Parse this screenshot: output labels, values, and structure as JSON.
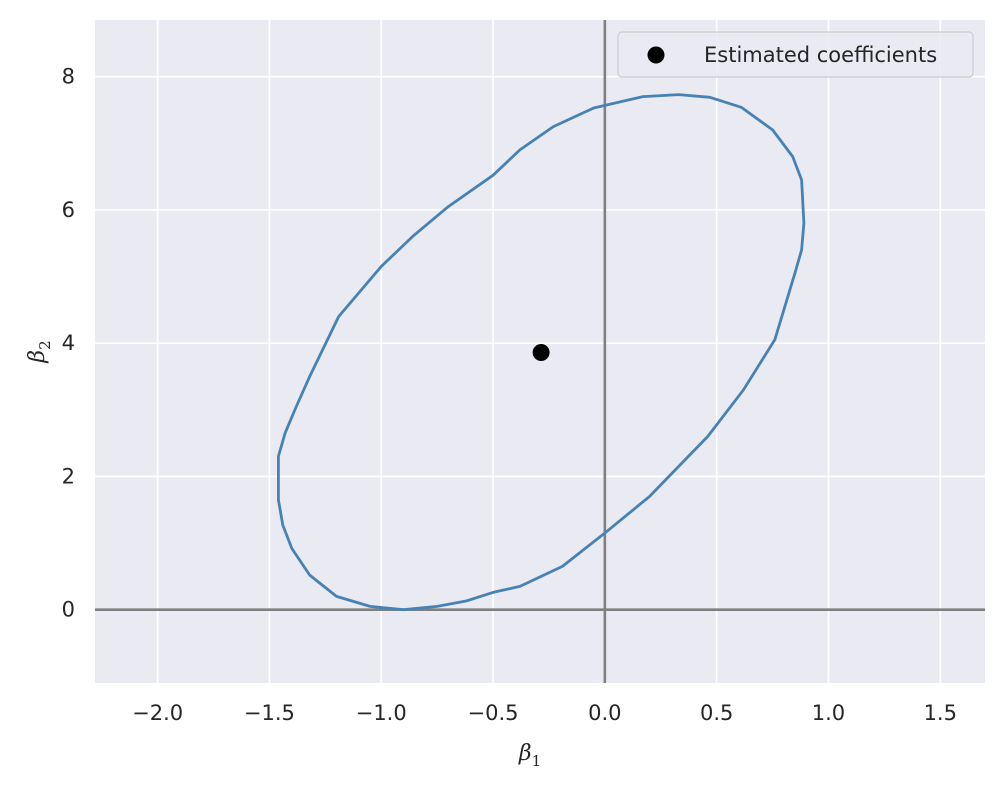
{
  "chart_data": {
    "type": "scatter",
    "title": "",
    "xlabel": "β",
    "xlabel_sub": "1",
    "ylabel": "β",
    "ylabel_sub": "2",
    "xlim": [
      -2.28,
      1.7
    ],
    "ylim": [
      -1.1,
      8.85
    ],
    "x_ticks": [
      -2.0,
      -1.5,
      -1.0,
      -0.5,
      0.0,
      0.5,
      1.0,
      1.5
    ],
    "x_tick_labels": [
      "−2.0",
      "−1.5",
      "−1.0",
      "−0.5",
      "0.0",
      "0.5",
      "1.0",
      "1.5"
    ],
    "y_ticks": [
      0,
      2,
      4,
      6,
      8
    ],
    "y_tick_labels": [
      "0",
      "2",
      "4",
      "6",
      "8"
    ],
    "grid": true,
    "background": "#eaeaf2",
    "reference_lines": {
      "x": 0,
      "y": 0,
      "color": "#808080"
    },
    "points": [
      {
        "x": -0.285,
        "y": 3.86,
        "color": "#000000"
      }
    ],
    "ellipse": {
      "color": "#4682b4",
      "center": [
        -0.285,
        3.86
      ],
      "points": [
        [
          0.33,
          7.73
        ],
        [
          0.47,
          7.69
        ],
        [
          0.61,
          7.54
        ],
        [
          0.75,
          7.2
        ],
        [
          0.84,
          6.8
        ],
        [
          0.88,
          6.45
        ],
        [
          0.89,
          5.8
        ],
        [
          0.88,
          5.4
        ],
        [
          0.85,
          5.05
        ],
        [
          0.76,
          4.05
        ],
        [
          0.62,
          3.3
        ],
        [
          0.46,
          2.6
        ],
        [
          0.2,
          1.7
        ],
        [
          0.0,
          1.15
        ],
        [
          -0.19,
          0.65
        ],
        [
          -0.38,
          0.35
        ],
        [
          -0.5,
          0.26
        ],
        [
          -0.62,
          0.13
        ],
        [
          -0.75,
          0.05
        ],
        [
          -0.9,
          0.0
        ],
        [
          -1.05,
          0.05
        ],
        [
          -1.2,
          0.2
        ],
        [
          -1.32,
          0.52
        ],
        [
          -1.4,
          0.92
        ],
        [
          -1.44,
          1.27
        ],
        [
          -1.46,
          1.65
        ],
        [
          -1.46,
          2.3
        ],
        [
          -1.43,
          2.65
        ],
        [
          -1.38,
          3.05
        ],
        [
          -1.32,
          3.5
        ],
        [
          -1.19,
          4.4
        ],
        [
          -1.0,
          5.15
        ],
        [
          -0.86,
          5.6
        ],
        [
          -0.7,
          6.05
        ],
        [
          -0.5,
          6.52
        ],
        [
          -0.38,
          6.9
        ],
        [
          -0.23,
          7.25
        ],
        [
          -0.05,
          7.53
        ],
        [
          0.17,
          7.7
        ],
        [
          0.33,
          7.73
        ]
      ]
    },
    "legend": {
      "position": "top-right",
      "entries": [
        {
          "label": "Estimated coefficients",
          "marker": "circle",
          "color": "#000000"
        }
      ]
    }
  }
}
